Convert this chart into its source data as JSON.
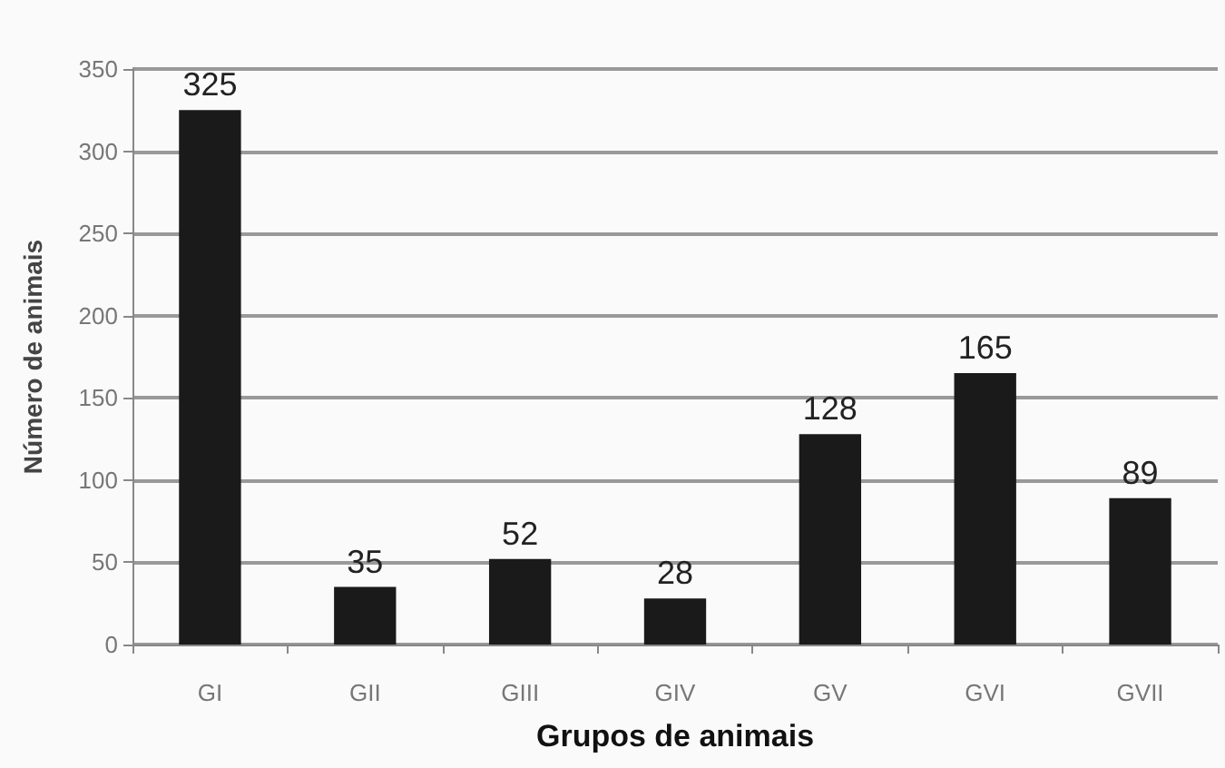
{
  "chart_data": {
    "type": "bar",
    "xlabel": "Grupos de animais",
    "ylabel": "Número de animais",
    "categories": [
      "GI",
      "GII",
      "GIII",
      "GIV",
      "GV",
      "GVI",
      "GVII"
    ],
    "values": [
      325,
      35,
      52,
      28,
      128,
      165,
      89
    ],
    "color": "#1a1a1a",
    "ylim": [
      0,
      350
    ],
    "yticks": [
      0,
      50,
      100,
      150,
      200,
      250,
      300,
      350
    ],
    "grid": "y",
    "data_labels": true
  }
}
